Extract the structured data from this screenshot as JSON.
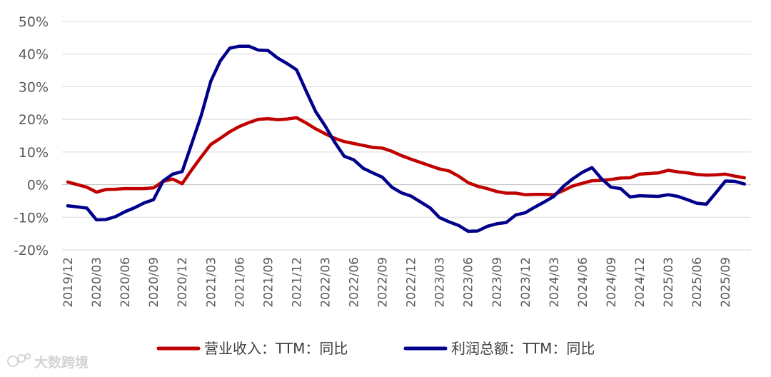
{
  "chart_data": {
    "type": "line",
    "title": "",
    "xlabel": "",
    "ylabel": "",
    "ylim": [
      -20,
      50
    ],
    "y_ticks": [
      -20,
      -10,
      0,
      10,
      20,
      30,
      40,
      50
    ],
    "y_tick_labels": [
      "-20%",
      "-10%",
      "0%",
      "10%",
      "20%",
      "30%",
      "40%",
      "50%"
    ],
    "x_tick_labels": [
      "2019/12",
      "2020/03",
      "2020/06",
      "2020/09",
      "2020/12",
      "2021/03",
      "2021/06",
      "2021/09",
      "2021/12",
      "2022/03",
      "2022/06",
      "2022/09",
      "2022/12",
      "2023/03",
      "2023/06",
      "2023/09",
      "2023/12",
      "2024/03",
      "2024/06",
      "2024/09",
      "2024/12",
      "2025/03",
      "2025/06",
      "2025/09"
    ],
    "grid": true,
    "legend_position": "bottom",
    "series": [
      {
        "name": "营业收入：TTM：同比",
        "color": "#C00000",
        "values": [
          0.8,
          0.0,
          -0.8,
          -2.3,
          -1.5,
          -1.4,
          -1.2,
          -1.2,
          -1.2,
          -1.0,
          1.0,
          1.7,
          0.3,
          4.5,
          8.5,
          12.3,
          14.2,
          16.2,
          17.8,
          19.0,
          20.0,
          20.2,
          19.9,
          20.1,
          20.5,
          18.9,
          17.1,
          15.6,
          14.2,
          13.2,
          12.6,
          12.0,
          11.4,
          11.2,
          10.2,
          8.9,
          7.8,
          6.8,
          5.8,
          4.8,
          4.2,
          2.6,
          0.6,
          -0.5,
          -1.2,
          -2.1,
          -2.6,
          -2.6,
          -3.1,
          -3.0,
          -3.0,
          -3.1,
          -1.8,
          -0.4,
          0.4,
          1.2,
          1.3,
          1.6,
          2.0,
          2.1,
          3.2,
          3.4,
          3.6,
          4.4,
          3.9,
          3.6,
          3.1,
          2.9,
          3.0,
          3.2,
          2.6,
          2.1
        ]
      },
      {
        "name": "利润总额：TTM：同比",
        "color": "#00008B",
        "values": [
          -6.5,
          -6.8,
          -7.2,
          -10.8,
          -10.7,
          -9.8,
          -8.3,
          -7.1,
          -5.6,
          -4.6,
          1.1,
          3.2,
          4.0,
          12.5,
          21.2,
          31.7,
          37.9,
          41.8,
          42.4,
          42.4,
          41.2,
          41.1,
          38.8,
          37.1,
          35.2,
          28.7,
          22.4,
          18.0,
          13.0,
          8.7,
          7.6,
          5.0,
          3.6,
          2.3,
          -0.8,
          -2.5,
          -3.5,
          -5.3,
          -7.1,
          -10.1,
          -11.4,
          -12.5,
          -14.3,
          -14.2,
          -12.8,
          -12.0,
          -11.6,
          -9.3,
          -8.6,
          -6.9,
          -5.3,
          -3.6,
          -0.5,
          1.8,
          3.8,
          5.2,
          1.8,
          -0.8,
          -1.2,
          -3.8,
          -3.4,
          -3.5,
          -3.6,
          -3.1,
          -3.6,
          -4.6,
          -5.7,
          -6.0,
          -2.5,
          1.1,
          1.0,
          0.2
        ]
      }
    ]
  },
  "watermark": {
    "icon": "bubble-logo-icon",
    "text": "大数跨境"
  }
}
